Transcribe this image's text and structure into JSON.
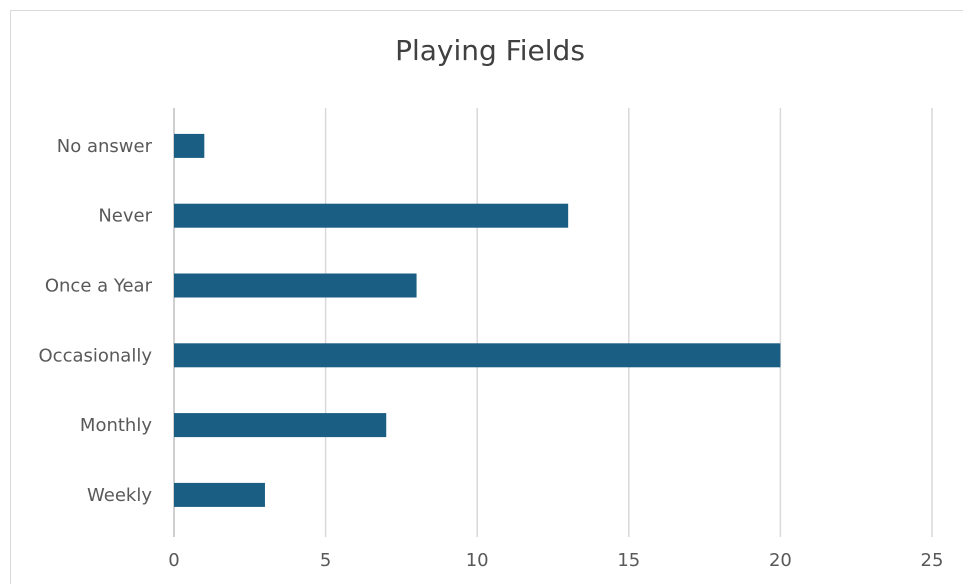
{
  "chart_data": {
    "type": "bar",
    "orientation": "horizontal",
    "title": "Playing Fields",
    "xlabel": "",
    "ylabel": "",
    "categories": [
      "No answer",
      "Never",
      "Once a Year",
      "Occasionally",
      "Monthly",
      "Weekly"
    ],
    "values": [
      1,
      13,
      8,
      20,
      7,
      3
    ],
    "xlim": [
      0,
      25
    ],
    "x_ticks": [
      "0",
      "5",
      "10",
      "15",
      "20",
      "25"
    ],
    "grid": "vertical",
    "legend": "none",
    "bar_color": "#1a5e83",
    "grid_color": "#d9d9d9",
    "text_color": "#595959",
    "title_color": "#404040"
  }
}
